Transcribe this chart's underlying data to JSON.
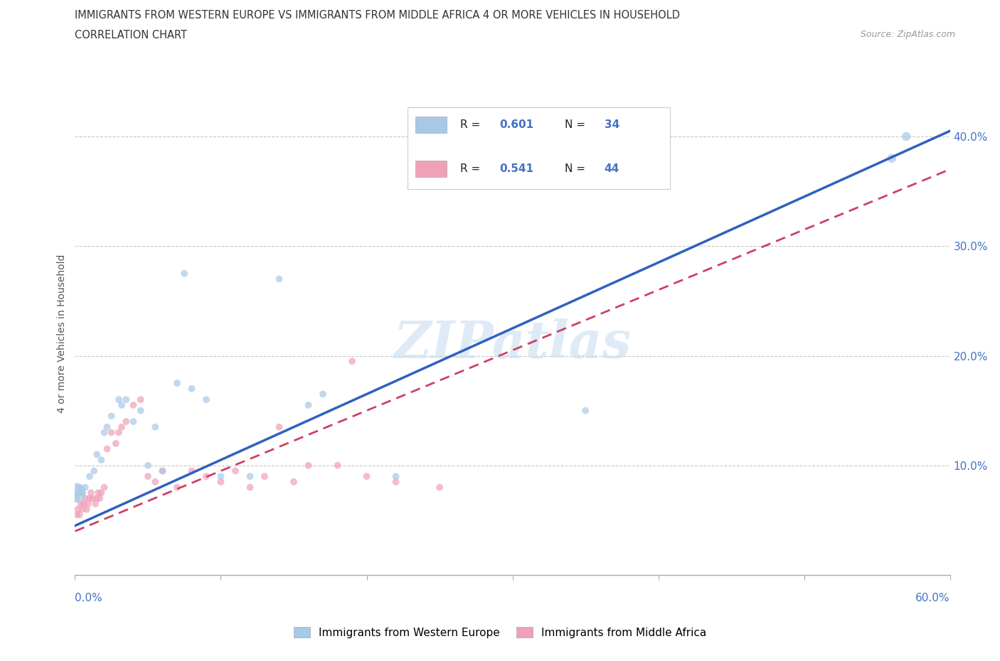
{
  "title_line1": "IMMIGRANTS FROM WESTERN EUROPE VS IMMIGRANTS FROM MIDDLE AFRICA 4 OR MORE VEHICLES IN HOUSEHOLD",
  "title_line2": "CORRELATION CHART",
  "source": "Source: ZipAtlas.com",
  "ylabel": "4 or more Vehicles in Household",
  "yticks": [
    10.0,
    20.0,
    30.0,
    40.0
  ],
  "xmin": 0.0,
  "xmax": 60.0,
  "ymin": 0.0,
  "ymax": 44.0,
  "color_blue": "#A8C8E8",
  "color_pink": "#F0A0B8",
  "color_line_blue": "#3060C0",
  "color_line_pink": "#D04060",
  "color_text_blue": "#4472C4",
  "watermark_text": "ZIPatlas",
  "legend_r1": "0.601",
  "legend_n1": "34",
  "legend_r2": "0.541",
  "legend_n2": "44",
  "legend_label1": "Immigrants from Western Europe",
  "legend_label2": "Immigrants from Middle Africa",
  "we_line_x0": 0.0,
  "we_line_y0": 4.5,
  "we_line_x1": 60.0,
  "we_line_y1": 40.5,
  "ma_line_x0": 0.0,
  "ma_line_y0": 4.0,
  "ma_line_x1": 60.0,
  "ma_line_y1": 37.0,
  "western_europe_x": [
    0.05,
    0.1,
    0.2,
    0.3,
    0.5,
    0.7,
    1.0,
    1.3,
    1.5,
    1.8,
    2.0,
    2.2,
    2.5,
    3.0,
    3.2,
    3.5,
    4.0,
    4.5,
    5.0,
    5.5,
    6.0,
    7.0,
    7.5,
    8.0,
    9.0,
    10.0,
    12.0,
    14.0,
    16.0,
    17.0,
    22.0,
    35.0,
    56.0,
    57.0
  ],
  "western_europe_y": [
    7.5,
    7.0,
    7.5,
    8.0,
    7.5,
    8.0,
    9.0,
    9.5,
    11.0,
    10.5,
    13.0,
    13.5,
    14.5,
    16.0,
    15.5,
    16.0,
    14.0,
    15.0,
    10.0,
    13.5,
    9.5,
    17.5,
    27.5,
    17.0,
    16.0,
    9.0,
    9.0,
    27.0,
    15.5,
    16.5,
    9.0,
    15.0,
    38.0,
    40.0
  ],
  "western_europe_sizes": [
    400,
    50,
    50,
    50,
    50,
    50,
    50,
    50,
    50,
    50,
    50,
    50,
    50,
    50,
    50,
    50,
    50,
    50,
    50,
    50,
    50,
    50,
    50,
    50,
    50,
    50,
    50,
    50,
    50,
    50,
    50,
    50,
    80,
    80
  ],
  "middle_africa_x": [
    0.1,
    0.2,
    0.3,
    0.4,
    0.5,
    0.6,
    0.7,
    0.8,
    0.9,
    1.0,
    1.1,
    1.2,
    1.4,
    1.5,
    1.6,
    1.7,
    1.8,
    2.0,
    2.2,
    2.5,
    2.8,
    3.0,
    3.2,
    3.5,
    4.0,
    4.5,
    5.0,
    5.5,
    6.0,
    7.0,
    8.0,
    9.0,
    10.0,
    11.0,
    12.0,
    13.0,
    14.0,
    15.0,
    16.0,
    18.0,
    19.0,
    20.0,
    22.0,
    25.0
  ],
  "middle_africa_y": [
    5.5,
    6.0,
    5.5,
    6.5,
    6.0,
    6.5,
    7.0,
    6.0,
    6.5,
    7.0,
    7.5,
    7.0,
    6.5,
    7.0,
    7.5,
    7.0,
    7.5,
    8.0,
    11.5,
    13.0,
    12.0,
    13.0,
    13.5,
    14.0,
    15.5,
    16.0,
    9.0,
    8.5,
    9.5,
    8.0,
    9.5,
    9.0,
    8.5,
    9.5,
    8.0,
    9.0,
    13.5,
    8.5,
    10.0,
    10.0,
    19.5,
    9.0,
    8.5,
    8.0
  ],
  "middle_africa_sizes": [
    50,
    50,
    50,
    50,
    50,
    50,
    50,
    50,
    50,
    50,
    50,
    50,
    50,
    50,
    50,
    50,
    50,
    50,
    50,
    50,
    50,
    50,
    50,
    50,
    50,
    50,
    50,
    50,
    50,
    50,
    50,
    50,
    50,
    50,
    50,
    50,
    50,
    50,
    50,
    50,
    50,
    50,
    50,
    50
  ]
}
